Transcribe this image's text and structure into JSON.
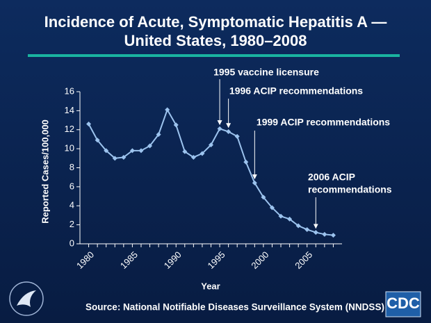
{
  "chart_data": {
    "type": "line",
    "title": [
      "Incidence of Acute, Symptomatic Hepatitis A —",
      "United States, 1980–2008"
    ],
    "x_label": "Year",
    "y_label": "Reported Cases/100,000",
    "x": [
      1980,
      1981,
      1982,
      1983,
      1984,
      1985,
      1986,
      1987,
      1988,
      1989,
      1990,
      1991,
      1992,
      1993,
      1994,
      1995,
      1996,
      1997,
      1998,
      1999,
      2000,
      2001,
      2002,
      2003,
      2004,
      2005,
      2006,
      2007,
      2008
    ],
    "series": [
      {
        "name": "Incidence",
        "color": "#9cc3ee",
        "values": [
          12.6,
          10.9,
          9.8,
          9.0,
          9.1,
          9.8,
          9.8,
          10.3,
          11.5,
          14.1,
          12.5,
          9.7,
          9.1,
          9.5,
          10.4,
          12.1,
          11.8,
          11.3,
          8.6,
          6.4,
          4.9,
          3.8,
          2.9,
          2.6,
          1.9,
          1.5,
          1.2,
          1.0,
          0.9
        ]
      }
    ],
    "xlim": [
      1979,
      2009
    ],
    "xticks": [
      1980,
      1985,
      1990,
      1995,
      2000,
      2005
    ],
    "ylim": [
      0,
      16
    ],
    "yticks": [
      0,
      2,
      4,
      6,
      8,
      10,
      12,
      14,
      16
    ],
    "annotations": [
      {
        "lines": [
          "1995 vaccine licensure"
        ],
        "x": 1995
      },
      {
        "lines": [
          "1996 ACIP recommendations"
        ],
        "x": 1996
      },
      {
        "lines": [
          "1999 ACIP recommendations"
        ],
        "x": 1999
      },
      {
        "lines": [
          "2006 ACIP",
          "recommendations"
        ],
        "x": 2006
      }
    ],
    "source": "Source: National Notifiable Diseases Surveillance System (NNDSS)",
    "logo": "CDC"
  }
}
